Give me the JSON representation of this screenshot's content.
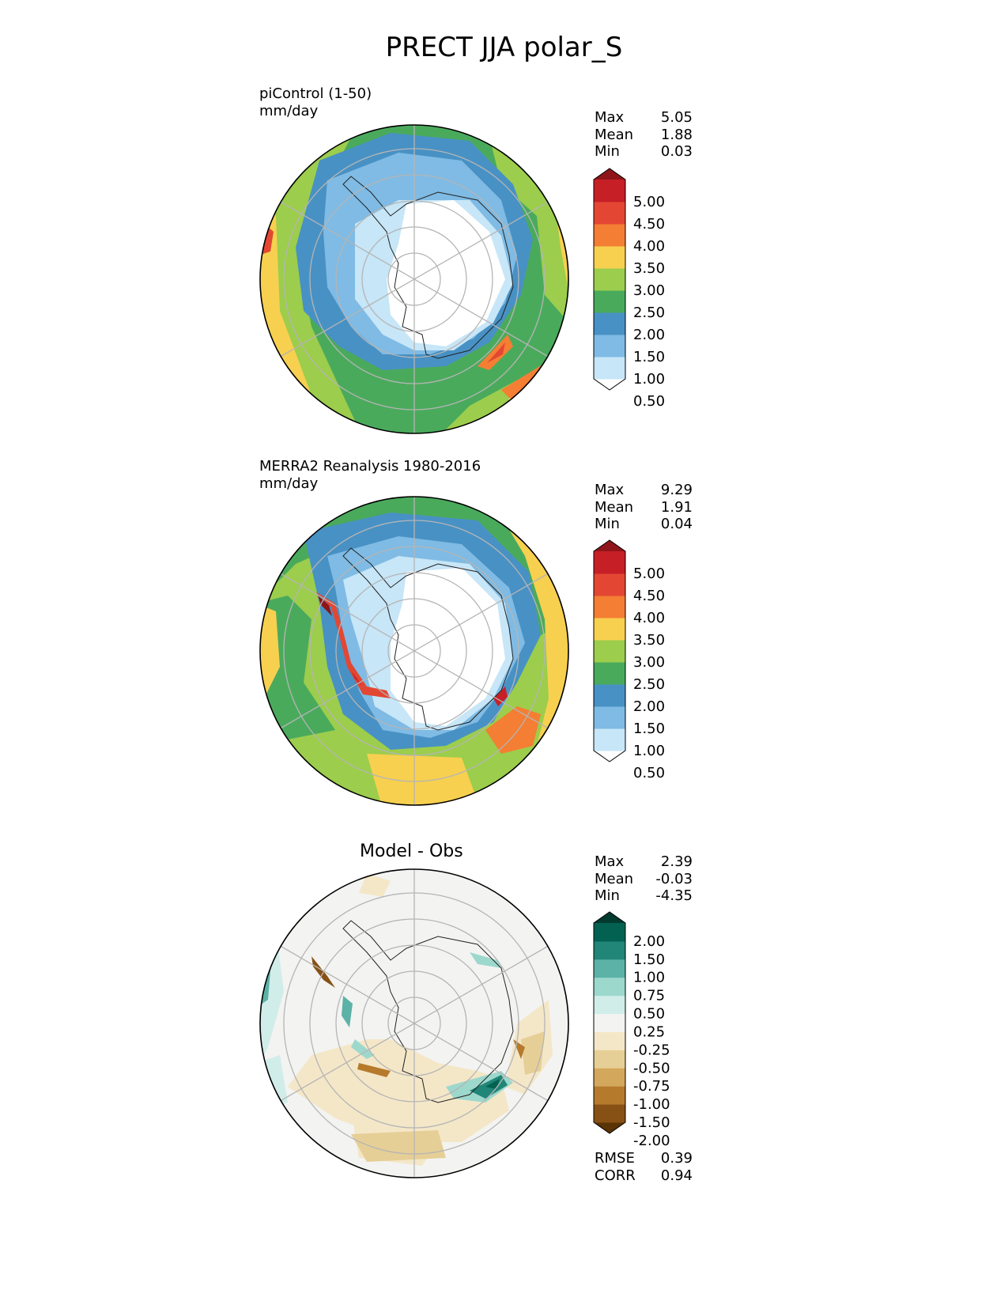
{
  "figure": {
    "title": "PRECT JJA polar_S"
  },
  "panels": [
    {
      "id": "test",
      "label": "piControl (1-50)",
      "units": "mm/day",
      "stats": [
        {
          "label": "Max",
          "value": "5.05"
        },
        {
          "label": "Mean",
          "value": "1.88"
        },
        {
          "label": "Min",
          "value": "0.03"
        }
      ],
      "colorbar": {
        "levels": [
          "5.00",
          "4.50",
          "4.00",
          "3.50",
          "3.00",
          "2.50",
          "2.00",
          "1.50",
          "1.00",
          "0.50"
        ],
        "colors": [
          "#ffffff",
          "#c7e6f7",
          "#7fbbe4",
          "#4891c4",
          "#4aaa5c",
          "#9ccd4c",
          "#f7d04f",
          "#f47e33",
          "#e34733",
          "#c71f26",
          "#8e1519"
        ]
      }
    },
    {
      "id": "ref",
      "label": "MERRA2 Reanalysis 1980-2016",
      "units": "mm/day",
      "stats": [
        {
          "label": "Max",
          "value": "9.29"
        },
        {
          "label": "Mean",
          "value": "1.91"
        },
        {
          "label": "Min",
          "value": "0.04"
        }
      ],
      "colorbar": {
        "levels": [
          "5.00",
          "4.50",
          "4.00",
          "3.50",
          "3.00",
          "2.50",
          "2.00",
          "1.50",
          "1.00",
          "0.50"
        ],
        "colors": [
          "#ffffff",
          "#c7e6f7",
          "#7fbbe4",
          "#4891c4",
          "#4aaa5c",
          "#9ccd4c",
          "#f7d04f",
          "#f47e33",
          "#e34733",
          "#c71f26",
          "#8e1519"
        ]
      }
    },
    {
      "id": "diff",
      "title": "Model - Obs",
      "stats": [
        {
          "label": "Max",
          "value": "2.39"
        },
        {
          "label": "Mean",
          "value": "-0.03"
        },
        {
          "label": "Min",
          "value": "-4.35"
        }
      ],
      "metrics": [
        {
          "label": "RMSE",
          "value": "0.39"
        },
        {
          "label": "CORR",
          "value": "0.94"
        }
      ],
      "colorbar": {
        "levels": [
          "2.00",
          "1.50",
          "1.00",
          "0.75",
          "0.50",
          "0.25",
          "-0.25",
          "-0.50",
          "-0.75",
          "-1.00",
          "-1.50",
          "-2.00"
        ],
        "colors": [
          "#5a3405",
          "#875116",
          "#b67a2d",
          "#d3a75c",
          "#e6cf96",
          "#f4e7c8",
          "#f3f3f2",
          "#d1ede9",
          "#9dd8cd",
          "#5cb2a7",
          "#218577",
          "#036152",
          "#013a2f"
        ]
      }
    }
  ]
}
